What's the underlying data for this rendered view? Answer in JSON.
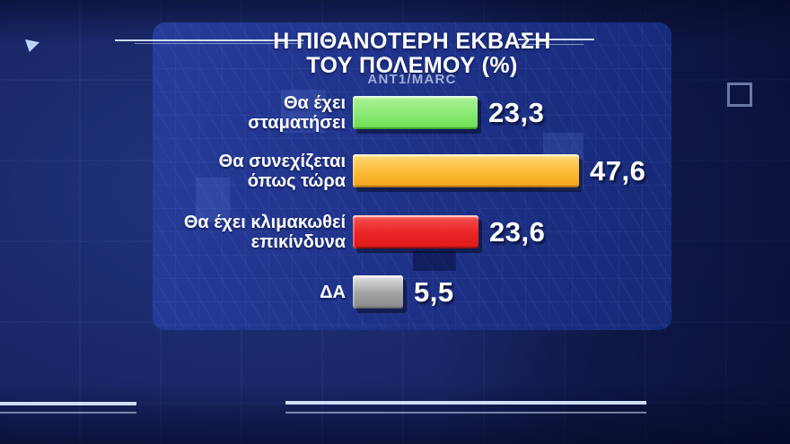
{
  "title": {
    "line1": "Η ΠΙΘΑΝΟΤΕΡΗ ΕΚΒΑΣΗ",
    "line2": "ΤΟΥ ΠΟΛΕΜΟΥ (%)",
    "source": "ANT1/MARC"
  },
  "chart_data": {
    "type": "bar",
    "orientation": "horizontal",
    "title": "Η ΠΙΘΑΝΟΤΕΡΗ ΕΚΒΑΣΗ ΤΟΥ ΠΟΛΕΜΟΥ (%)",
    "subtitle": "ANT1/MARC",
    "unit": "%",
    "xlim": [
      0,
      50
    ],
    "grid": false,
    "legend": "none",
    "decimal_separator": "comma",
    "categories": [
      "Θα έχει σταματήσει",
      "Θα συνεχίζεται όπως τώρα",
      "Θα έχει κλιμακωθεί επικίνδυνα",
      "ΔΑ"
    ],
    "values": [
      23.3,
      47.6,
      23.6,
      5.5
    ],
    "value_labels": [
      "23,3",
      "47,6",
      "23,6",
      "5,5"
    ],
    "bar_colors": [
      "#8ae973",
      "#fbba35",
      "#ea2424",
      "#999999"
    ]
  },
  "bars": [
    {
      "label_line1": "Θα έχει",
      "label_line2": "σταματήσει",
      "value": 23.3,
      "display_value": "23,3",
      "color_name": "green",
      "gradient": [
        "#dcffd0",
        "#a6f090",
        "#8ae973",
        "#6fdf56",
        "#46bd35"
      ]
    },
    {
      "label_line1": "Θα συνεχίζεται",
      "label_line2": "όπως τώρα",
      "value": 47.6,
      "display_value": "47,6",
      "color_name": "orange",
      "gradient": [
        "#ffedb0",
        "#ffd36a",
        "#fbba35",
        "#f3a71f",
        "#c87f10"
      ]
    },
    {
      "label_line1": "Θα έχει κλιμακωθεί",
      "label_line2": "επικίνδυνα",
      "value": 23.6,
      "display_value": "23,6",
      "color_name": "red",
      "gradient": [
        "#ff9d9d",
        "#f34848",
        "#ea2424",
        "#de1c1c",
        "#b01212"
      ]
    },
    {
      "label_line1": "ΔΑ",
      "label_line2": "",
      "value": 5.5,
      "display_value": "5,5",
      "color_name": "gray",
      "gradient": [
        "#f2f2f2",
        "#d6d6d6",
        "#a2a2a2",
        "#8e8e8e",
        "#7c7c7c"
      ]
    }
  ],
  "colors": {
    "background": "#13206b",
    "panel": "#1d3086",
    "text": "#ffffff",
    "subtitle_text": "#9fb0d8",
    "deco_line": "#cdddf5",
    "bar_green": "#8ae973",
    "bar_orange": "#fbba35",
    "bar_red": "#ea2424",
    "bar_gray": "#999999"
  }
}
